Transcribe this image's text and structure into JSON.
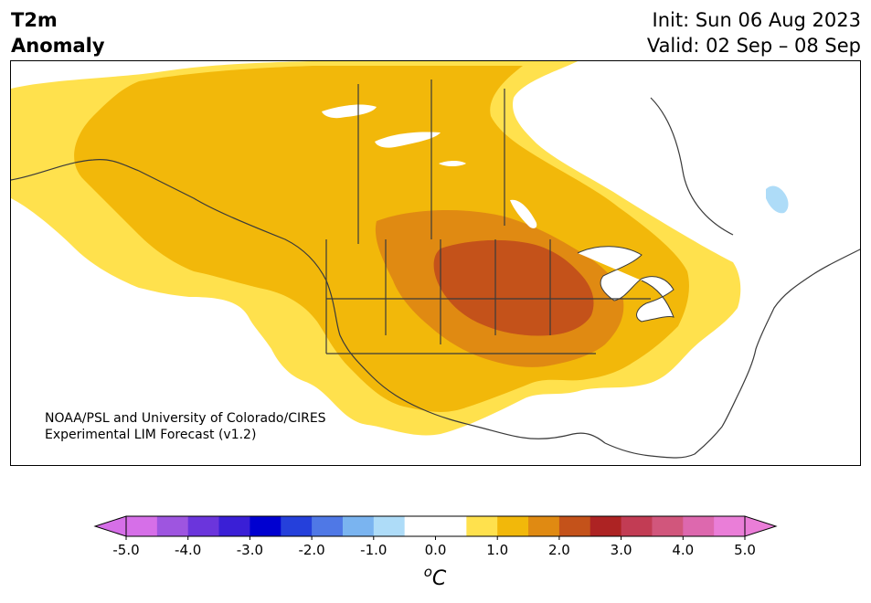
{
  "header": {
    "title_line1": "T2m",
    "title_line2": "Anomaly",
    "init_text": "Init: Sun 06 Aug 2023",
    "valid_text": "Valid: 02 Sep – 08 Sep"
  },
  "credit": {
    "line1": "NOAA/PSL and University of Colorado/CIRES",
    "line2": "Experimental LIM Forecast (v1.2)"
  },
  "colorbar": {
    "unit_label": "oC",
    "tick_labels": [
      "-5.0",
      "-4.0",
      "-3.0",
      "-2.0",
      "-1.0",
      "0.0",
      "1.0",
      "2.0",
      "3.0",
      "4.0",
      "5.0"
    ],
    "colors": [
      "#d66fe8",
      "#9e55e0",
      "#6b35dc",
      "#3a1fd6",
      "#0000d0",
      "#2540db",
      "#4f78e6",
      "#7ab4f0",
      "#aedcf8",
      "#ffffff",
      "#ffffff",
      "#ffe14d",
      "#f2b80a",
      "#e08a12",
      "#c4521a",
      "#ad2323",
      "#c23c54",
      "#d1567c",
      "#dd68ae",
      "#ea7ed8"
    ],
    "min_color": "#d66fe8",
    "max_color": "#ea7ed8"
  },
  "map_colors": {
    "anomaly_0_5_to_1": "#ffe14d",
    "anomaly_1_to_1_5": "#f2b80a",
    "anomaly_1_5_to_2": "#e08a12",
    "anomaly_2_to_2_5": "#c4521a",
    "anomaly_neg_0_5_to_neg_1": "#aedcf8",
    "coastline": "#3a3a3a"
  }
}
